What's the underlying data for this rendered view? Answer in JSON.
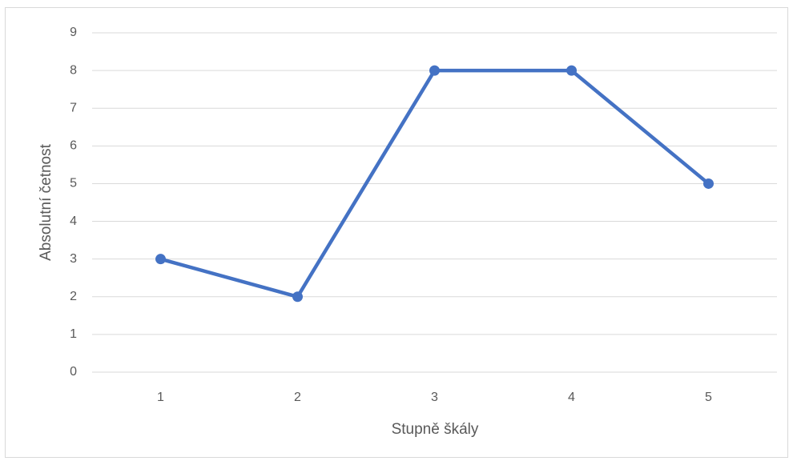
{
  "chart_data": {
    "type": "line",
    "x_label": "Stupně škály",
    "y_label": "Absolutní četnost",
    "categories": [
      "1",
      "2",
      "3",
      "4",
      "5"
    ],
    "series": [
      {
        "name": "Absolutní četnost",
        "color": "#4472c4",
        "values": [
          3,
          2,
          8,
          8,
          5
        ]
      }
    ],
    "ylim": [
      0,
      9
    ],
    "yticks": [
      0,
      1,
      2,
      3,
      4,
      5,
      6,
      7,
      8,
      9
    ],
    "grid": true
  }
}
